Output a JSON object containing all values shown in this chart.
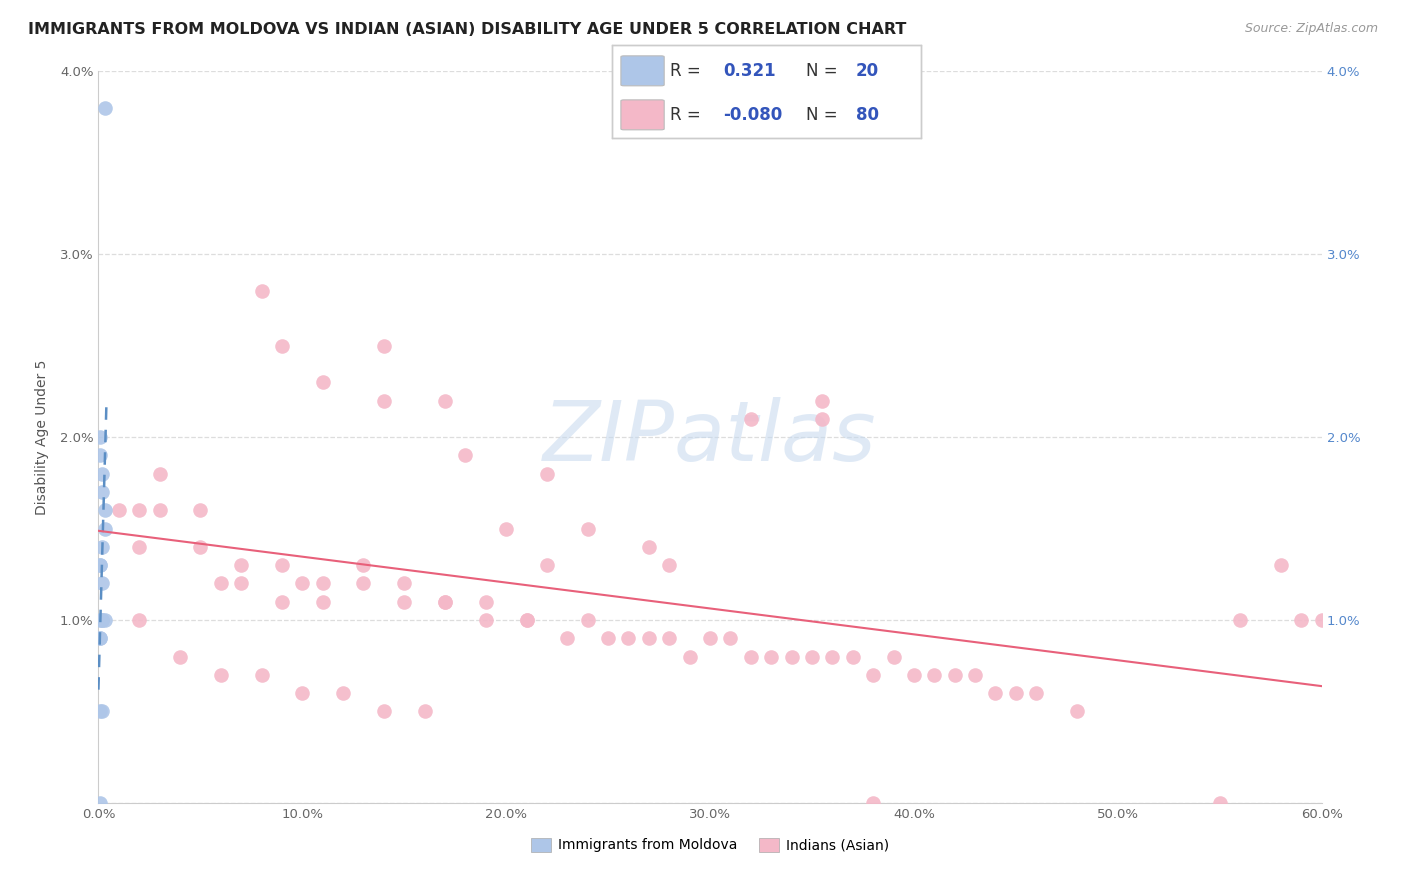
{
  "title": "IMMIGRANTS FROM MOLDOVA VS INDIAN (ASIAN) DISABILITY AGE UNDER 5 CORRELATION CHART",
  "source": "Source: ZipAtlas.com",
  "ylabel": "Disability Age Under 5",
  "xlim": [
    0.0,
    0.6
  ],
  "ylim": [
    0.0,
    0.04
  ],
  "xticks": [
    0.0,
    0.1,
    0.2,
    0.3,
    0.4,
    0.5,
    0.6
  ],
  "yticks": [
    0.0,
    0.01,
    0.02,
    0.03,
    0.04
  ],
  "xtick_labels": [
    "0.0%",
    "10.0%",
    "20.0%",
    "30.0%",
    "40.0%",
    "50.0%",
    "60.0%"
  ],
  "ytick_labels": [
    "",
    "1.0%",
    "2.0%",
    "3.0%",
    "4.0%"
  ],
  "color_blue": "#aec6e8",
  "color_blue_line": "#5b8ec4",
  "color_pink": "#f4b8c8",
  "color_pink_line": "#e8607a",
  "color_grid": "#dddddd",
  "background": "#ffffff",
  "moldova_x": [
    0.003,
    0.001,
    0.001,
    0.002,
    0.002,
    0.003,
    0.003,
    0.002,
    0.001,
    0.001,
    0.002,
    0.002,
    0.001,
    0.002,
    0.003,
    0.001,
    0.001,
    0.002,
    0.001,
    0.001
  ],
  "moldova_y": [
    0.038,
    0.02,
    0.019,
    0.018,
    0.017,
    0.016,
    0.015,
    0.014,
    0.013,
    0.013,
    0.012,
    0.01,
    0.01,
    0.01,
    0.01,
    0.009,
    0.009,
    0.005,
    0.005,
    0.0
  ],
  "indian_x": [
    0.08,
    0.355,
    0.355,
    0.09,
    0.11,
    0.14,
    0.14,
    0.17,
    0.18,
    0.2,
    0.22,
    0.24,
    0.27,
    0.28,
    0.32,
    0.58,
    0.6,
    0.01,
    0.02,
    0.02,
    0.03,
    0.05,
    0.06,
    0.07,
    0.09,
    0.1,
    0.11,
    0.13,
    0.15,
    0.17,
    0.19,
    0.21,
    0.22,
    0.23,
    0.25,
    0.27,
    0.29,
    0.31,
    0.33,
    0.35,
    0.37,
    0.39,
    0.41,
    0.43,
    0.45,
    0.03,
    0.05,
    0.07,
    0.09,
    0.11,
    0.13,
    0.15,
    0.17,
    0.19,
    0.21,
    0.24,
    0.26,
    0.28,
    0.3,
    0.32,
    0.34,
    0.36,
    0.38,
    0.4,
    0.42,
    0.44,
    0.46,
    0.48,
    0.56,
    0.59,
    0.02,
    0.04,
    0.06,
    0.08,
    0.1,
    0.12,
    0.14,
    0.16,
    0.38,
    0.55
  ],
  "indian_y": [
    0.028,
    0.022,
    0.021,
    0.025,
    0.023,
    0.025,
    0.022,
    0.022,
    0.019,
    0.015,
    0.018,
    0.015,
    0.014,
    0.013,
    0.021,
    0.013,
    0.01,
    0.016,
    0.016,
    0.014,
    0.016,
    0.014,
    0.012,
    0.012,
    0.011,
    0.012,
    0.011,
    0.012,
    0.011,
    0.011,
    0.01,
    0.01,
    0.013,
    0.009,
    0.009,
    0.009,
    0.008,
    0.009,
    0.008,
    0.008,
    0.008,
    0.008,
    0.007,
    0.007,
    0.006,
    0.018,
    0.016,
    0.013,
    0.013,
    0.012,
    0.013,
    0.012,
    0.011,
    0.011,
    0.01,
    0.01,
    0.009,
    0.009,
    0.009,
    0.008,
    0.008,
    0.008,
    0.007,
    0.007,
    0.007,
    0.006,
    0.006,
    0.005,
    0.01,
    0.01,
    0.01,
    0.008,
    0.007,
    0.007,
    0.006,
    0.006,
    0.005,
    0.005,
    0.0,
    0.0
  ],
  "watermark": "ZIPatlas",
  "title_fontsize": 11.5,
  "axis_fontsize": 9.5,
  "legend_fontsize": 12,
  "legend_r_color": "#3355bb",
  "legend_n_color": "#3355bb",
  "legend_r_label_color": "#333333"
}
